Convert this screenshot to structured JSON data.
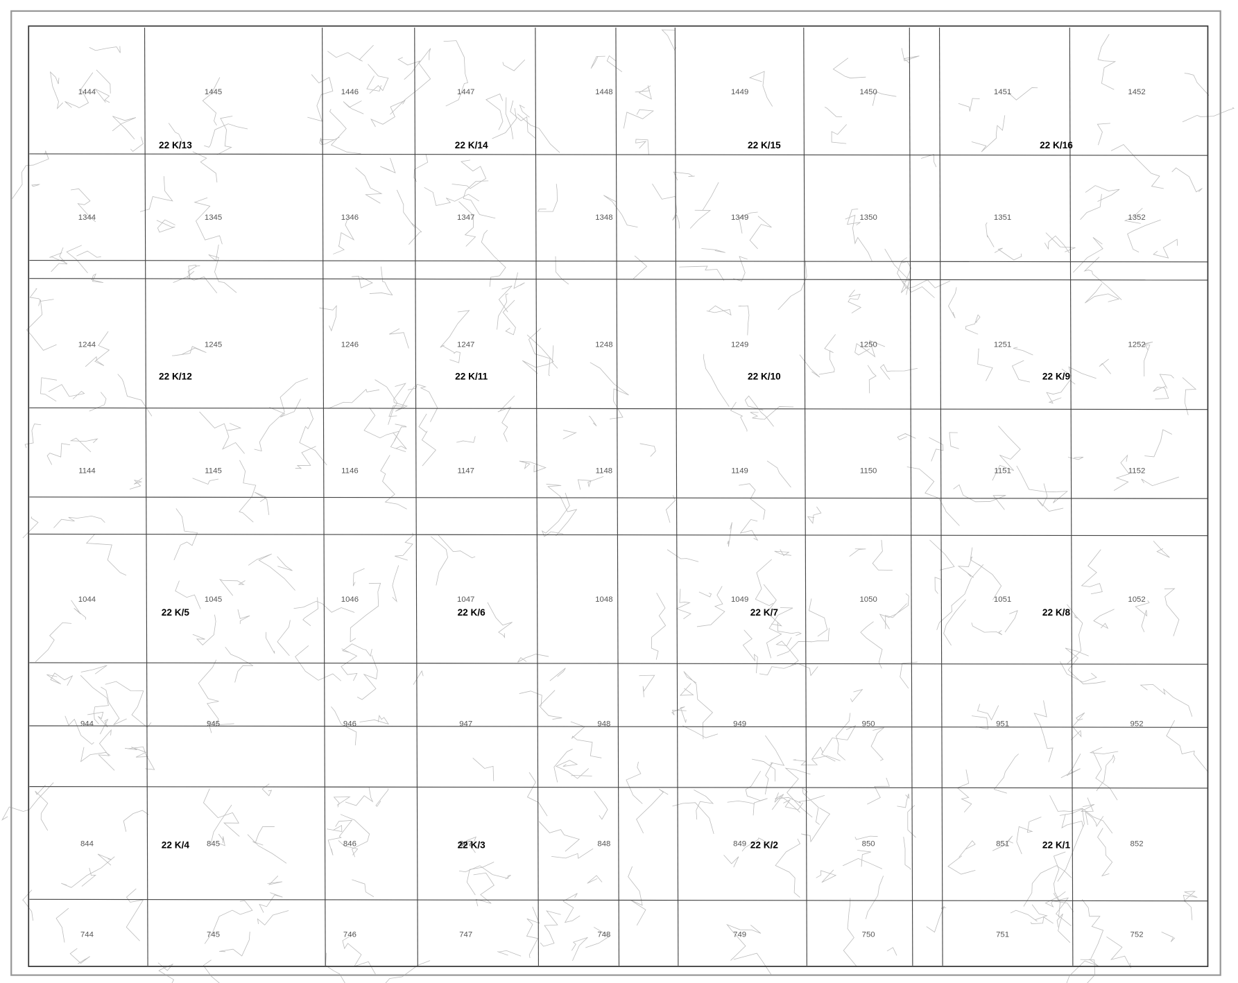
{
  "map": {
    "sheets": [
      [
        "22 K/13",
        "22 K/14",
        "22 K/15",
        "22 K/16"
      ],
      [
        "22 K/12",
        "22 K/11",
        "22 K/10",
        "22 K/9"
      ],
      [
        "22 K/5",
        "22 K/6",
        "22 K/7",
        "22 K/8"
      ],
      [
        "22 K/4",
        "22 K/3",
        "22 K/2",
        "22 K/1"
      ]
    ],
    "cells": [
      [
        "1444",
        "1445",
        "1446",
        "1447",
        "1448",
        "1449",
        "1450",
        "1451",
        "1452"
      ],
      [
        "1344",
        "1345",
        "1346",
        "1347",
        "1348",
        "1349",
        "1350",
        "1351",
        "1352"
      ],
      [
        "1244",
        "1245",
        "1246",
        "1247",
        "1248",
        "1249",
        "1250",
        "1251",
        "1252"
      ],
      [
        "1144",
        "1145",
        "1146",
        "1147",
        "1148",
        "1149",
        "1150",
        "1151",
        "1152"
      ],
      [
        "1044",
        "1045",
        "1046",
        "1047",
        "1048",
        "1049",
        "1050",
        "1051",
        "1052"
      ],
      [
        "944",
        "945",
        "946",
        "947",
        "948",
        "949",
        "950",
        "951",
        "952"
      ],
      [
        "844",
        "845",
        "846",
        "847",
        "848",
        "849",
        "850",
        "851",
        "852"
      ],
      [
        "744",
        "745",
        "746",
        "747",
        "748",
        "749",
        "750",
        "751",
        "752"
      ]
    ]
  }
}
